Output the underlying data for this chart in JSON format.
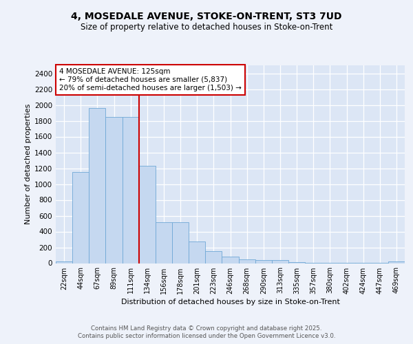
{
  "title_line1": "4, MOSEDALE AVENUE, STOKE-ON-TRENT, ST3 7UD",
  "title_line2": "Size of property relative to detached houses in Stoke-on-Trent",
  "xlabel": "Distribution of detached houses by size in Stoke-on-Trent",
  "ylabel": "Number of detached properties",
  "categories": [
    "22sqm",
    "44sqm",
    "67sqm",
    "89sqm",
    "111sqm",
    "134sqm",
    "156sqm",
    "178sqm",
    "201sqm",
    "223sqm",
    "246sqm",
    "268sqm",
    "290sqm",
    "313sqm",
    "335sqm",
    "357sqm",
    "380sqm",
    "402sqm",
    "424sqm",
    "447sqm",
    "469sqm"
  ],
  "values": [
    25,
    1155,
    1960,
    1850,
    1850,
    1230,
    520,
    520,
    270,
    155,
    85,
    45,
    35,
    35,
    10,
    5,
    5,
    5,
    5,
    5,
    25
  ],
  "bar_color": "#c5d8f0",
  "bar_edge_color": "#6fa8d6",
  "vline_x": 4.5,
  "vline_color": "#cc0000",
  "annotation_text": "4 MOSEDALE AVENUE: 125sqm\n← 79% of detached houses are smaller (5,837)\n20% of semi-detached houses are larger (1,503) →",
  "annotation_box_color": "#ffffff",
  "annotation_box_edge": "#cc0000",
  "ylim": [
    0,
    2500
  ],
  "yticks": [
    0,
    200,
    400,
    600,
    800,
    1000,
    1200,
    1400,
    1600,
    1800,
    2000,
    2200,
    2400
  ],
  "footer_line1": "Contains HM Land Registry data © Crown copyright and database right 2025.",
  "footer_line2": "Contains public sector information licensed under the Open Government Licence v3.0.",
  "bg_color": "#eef2fa",
  "plot_bg_color": "#dce6f5",
  "grid_color": "#c8d4e8"
}
